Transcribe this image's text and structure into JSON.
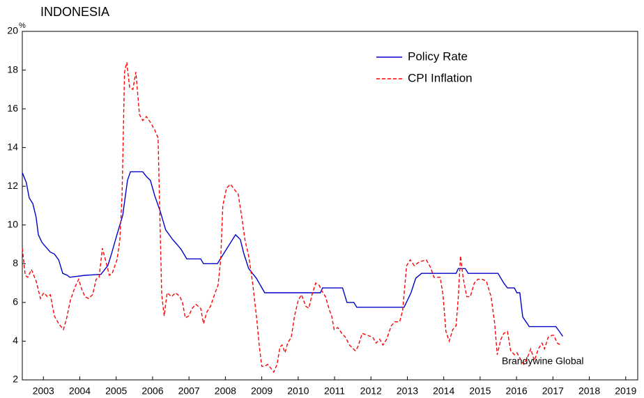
{
  "chart_data": {
    "type": "line",
    "title": "INDONESIA",
    "y_unit": "%",
    "annotation": "Brandywine Global",
    "legend": "upper right",
    "grid": false,
    "xlim": [
      2002.92,
      2019.83
    ],
    "ylim": [
      2,
      20
    ],
    "yticks": [
      2,
      4,
      6,
      8,
      10,
      12,
      14,
      16,
      18,
      20
    ],
    "xticks": [
      {
        "value": 2003.5,
        "label": "2003"
      },
      {
        "value": 2004.5,
        "label": "2004"
      },
      {
        "value": 2005.5,
        "label": "2005"
      },
      {
        "value": 2006.5,
        "label": "2006"
      },
      {
        "value": 2007.5,
        "label": "2007"
      },
      {
        "value": 2008.5,
        "label": "2008"
      },
      {
        "value": 2009.5,
        "label": "2009"
      },
      {
        "value": 2010.5,
        "label": "2010"
      },
      {
        "value": 2011.5,
        "label": "2011"
      },
      {
        "value": 2012.5,
        "label": "2012"
      },
      {
        "value": 2013.5,
        "label": "2013"
      },
      {
        "value": 2014.5,
        "label": "2014"
      },
      {
        "value": 2015.5,
        "label": "2015"
      },
      {
        "value": 2016.5,
        "label": "2016"
      },
      {
        "value": 2017.5,
        "label": "2017"
      },
      {
        "value": 2018.5,
        "label": "2018"
      },
      {
        "value": 2019.5,
        "label": "2019"
      }
    ],
    "series": [
      {
        "name": "Policy Rate",
        "color": "#0000cc",
        "style": "solid",
        "x": [
          2002.92,
          2003.03,
          2003.11,
          2003.21,
          2003.3,
          2003.36,
          2003.46,
          2003.55,
          2003.69,
          2003.8,
          2003.92,
          2004.03,
          2004.16,
          2004.22,
          2004.64,
          2005.08,
          2005.27,
          2005.37,
          2005.52,
          2005.68,
          2005.81,
          2005.89,
          2006.23,
          2006.33,
          2006.44,
          2006.56,
          2006.71,
          2006.86,
          2007.05,
          2007.17,
          2007.28,
          2007.44,
          2007.82,
          2007.9,
          2008.28,
          2008.53,
          2008.78,
          2008.91,
          2009.01,
          2009.14,
          2009.35,
          2009.58,
          2011.11,
          2011.17,
          2011.72,
          2011.84,
          2012.03,
          2012.11,
          2013.41,
          2013.6,
          2013.73,
          2013.89,
          2014.84,
          2014.9,
          2015.09,
          2015.17,
          2015.99,
          2016.15,
          2016.25,
          2016.44,
          2016.51,
          2016.59,
          2016.67,
          2016.76,
          2016.85,
          2017.58,
          2017.68,
          2017.77
        ],
        "values": [
          12.7,
          12.2,
          11.4,
          11.1,
          10.4,
          9.5,
          9.1,
          8.9,
          8.6,
          8.5,
          8.2,
          7.5,
          7.4,
          7.3,
          7.4,
          7.45,
          7.9,
          8.5,
          9.5,
          10.5,
          12.3,
          12.75,
          12.75,
          12.5,
          12.3,
          11.5,
          10.7,
          9.75,
          9.25,
          9.0,
          8.75,
          8.25,
          8.25,
          8.0,
          8.0,
          8.75,
          9.5,
          9.25,
          8.5,
          7.75,
          7.25,
          6.5,
          6.5,
          6.75,
          6.75,
          6.0,
          6.0,
          5.75,
          5.75,
          6.5,
          7.25,
          7.5,
          7.5,
          7.75,
          7.75,
          7.5,
          7.5,
          7.0,
          6.75,
          6.75,
          6.5,
          6.5,
          5.25,
          5.0,
          4.75,
          4.75,
          4.5,
          4.25
        ]
      },
      {
        "name": "CPI Inflation",
        "color": "#ff0000",
        "style": "dashed",
        "x": [
          2002.92,
          2003.0,
          2003.07,
          2003.17,
          2003.3,
          2003.42,
          2003.51,
          2003.61,
          2003.69,
          2003.8,
          2003.92,
          2004.05,
          2004.14,
          2004.24,
          2004.37,
          2004.47,
          2004.55,
          2004.64,
          2004.74,
          2004.85,
          2004.95,
          2005.03,
          2005.12,
          2005.22,
          2005.31,
          2005.39,
          2005.52,
          2005.6,
          2005.66,
          2005.73,
          2005.79,
          2005.87,
          2005.96,
          2006.04,
          2006.14,
          2006.23,
          2006.33,
          2006.44,
          2006.56,
          2006.65,
          2006.75,
          2006.82,
          2006.9,
          2007.02,
          2007.13,
          2007.25,
          2007.32,
          2007.4,
          2007.49,
          2007.59,
          2007.69,
          2007.82,
          2007.9,
          2007.99,
          2008.09,
          2008.2,
          2008.3,
          2008.37,
          2008.43,
          2008.53,
          2008.64,
          2008.76,
          2008.85,
          2008.95,
          2009.04,
          2009.14,
          2009.25,
          2009.37,
          2009.43,
          2009.5,
          2009.58,
          2009.66,
          2009.75,
          2009.83,
          2009.92,
          2010.0,
          2010.06,
          2010.14,
          2010.21,
          2010.31,
          2010.4,
          2010.5,
          2010.59,
          2010.71,
          2010.79,
          2010.88,
          2010.98,
          2011.07,
          2011.15,
          2011.25,
          2011.36,
          2011.42,
          2011.49,
          2011.59,
          2011.7,
          2011.8,
          2011.91,
          2012.07,
          2012.14,
          2012.26,
          2012.41,
          2012.55,
          2012.64,
          2012.74,
          2012.83,
          2012.93,
          2013.06,
          2013.16,
          2013.29,
          2013.37,
          2013.48,
          2013.58,
          2013.69,
          2013.83,
          2014.02,
          2014.14,
          2014.23,
          2014.4,
          2014.48,
          2014.56,
          2014.65,
          2014.75,
          2014.84,
          2014.9,
          2014.96,
          2015.03,
          2015.13,
          2015.23,
          2015.34,
          2015.44,
          2015.55,
          2015.67,
          2015.8,
          2015.9,
          2015.97,
          2016.07,
          2016.15,
          2016.25,
          2016.34,
          2016.44,
          2016.51,
          2016.63,
          2016.7,
          2016.81,
          2016.89,
          2016.99,
          2017.1,
          2017.2,
          2017.27,
          2017.37,
          2017.47,
          2017.52,
          2017.62,
          2017.71
        ],
        "values": [
          8.8,
          7.4,
          7.3,
          7.7,
          7.1,
          6.2,
          6.5,
          6.3,
          6.4,
          5.3,
          4.9,
          4.6,
          5.2,
          6.1,
          6.8,
          7.2,
          6.7,
          6.3,
          6.2,
          6.4,
          7.2,
          7.3,
          8.8,
          8.1,
          7.4,
          7.5,
          8.2,
          9.2,
          11.5,
          17.9,
          18.4,
          17.1,
          17.0,
          17.9,
          15.7,
          15.4,
          15.6,
          15.3,
          14.9,
          14.5,
          6.4,
          5.3,
          6.5,
          6.3,
          6.5,
          6.3,
          6.0,
          5.2,
          5.3,
          5.7,
          5.9,
          5.7,
          4.9,
          5.5,
          5.8,
          6.4,
          6.9,
          8.2,
          11.0,
          11.9,
          12.1,
          11.8,
          11.6,
          10.4,
          9.2,
          8.4,
          7.0,
          5.0,
          3.8,
          2.7,
          2.7,
          2.8,
          2.6,
          2.4,
          2.8,
          3.7,
          3.8,
          3.4,
          3.9,
          4.2,
          5.3,
          6.1,
          6.4,
          5.8,
          5.7,
          6.4,
          7.0,
          6.9,
          6.6,
          6.3,
          5.6,
          5.3,
          4.6,
          4.7,
          4.4,
          4.2,
          3.8,
          3.5,
          3.7,
          4.4,
          4.3,
          4.2,
          3.9,
          4.1,
          3.8,
          4.1,
          4.8,
          5.0,
          5.0,
          5.6,
          7.9,
          8.2,
          7.9,
          8.1,
          8.2,
          7.8,
          7.3,
          7.3,
          6.4,
          4.5,
          4.0,
          4.6,
          4.8,
          6.3,
          8.4,
          7.3,
          6.3,
          6.3,
          7.0,
          7.2,
          7.2,
          7.1,
          6.3,
          4.9,
          3.3,
          4.1,
          4.4,
          4.5,
          3.5,
          3.3,
          3.4,
          3.0,
          2.8,
          3.2,
          3.6,
          3.0,
          3.6,
          3.9,
          3.6,
          4.2,
          4.3,
          4.3,
          3.9,
          3.8
        ]
      }
    ]
  }
}
